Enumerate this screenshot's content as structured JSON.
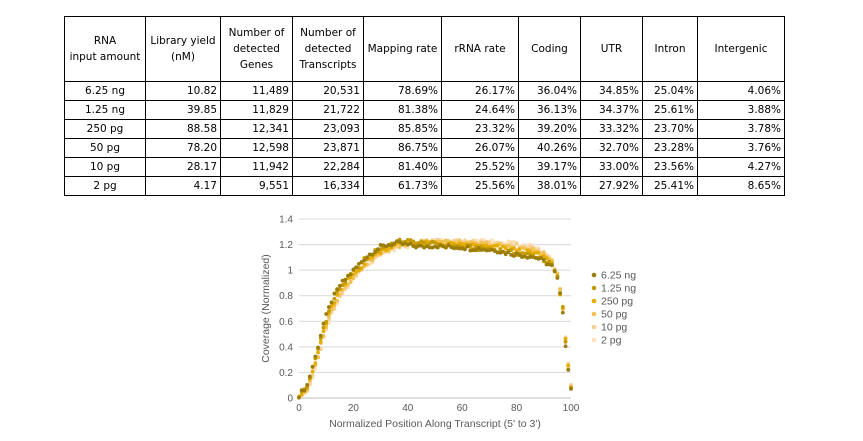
{
  "table": {
    "headers": [
      "RNA\ninput amount",
      "Library yield\n(nM)",
      "Number of\ndetected\nGenes",
      "Number of\ndetected\nTranscripts",
      "Mapping rate",
      "rRNA rate",
      "Coding",
      "UTR",
      "Intron",
      "Intergenic"
    ],
    "rows": [
      [
        "6.25 ng",
        "10.82",
        "11,489",
        "20,531",
        "78.69%",
        "26.17%",
        "36.04%",
        "34.85%",
        "25.04%",
        "4.06%"
      ],
      [
        "1.25 ng",
        "39.85",
        "11,829",
        "21,722",
        "81.38%",
        "24.64%",
        "36.13%",
        "34.37%",
        "25.61%",
        "3.88%"
      ],
      [
        "250 pg",
        "88.58",
        "12,341",
        "23,093",
        "85.85%",
        "23.32%",
        "39.20%",
        "33.32%",
        "23.70%",
        "3.78%"
      ],
      [
        "50 pg",
        "78.20",
        "12,598",
        "23,871",
        "86.75%",
        "26.07%",
        "40.26%",
        "32.70%",
        "23.28%",
        "3.76%"
      ],
      [
        "10 pg",
        "28.17",
        "11,942",
        "22,284",
        "81.40%",
        "25.52%",
        "39.17%",
        "33.00%",
        "23.56%",
        "4.27%"
      ],
      [
        "2 pg",
        "4.17",
        "9,551",
        "16,334",
        "61.73%",
        "25.56%",
        "38.01%",
        "27.92%",
        "25.41%",
        "8.65%"
      ]
    ]
  },
  "chart_data": {
    "type": "scatter",
    "title": "",
    "xlabel": "Normalized Position Along Transcript (5' to 3')",
    "ylabel": "Coverage (Normalized)",
    "xlim": [
      0,
      100
    ],
    "ylim": [
      0,
      1.4
    ],
    "xticks": [
      0,
      20,
      40,
      60,
      80,
      100
    ],
    "yticks": [
      0,
      0.2,
      0.4,
      0.6,
      0.8,
      1.0,
      1.2,
      1.4
    ],
    "xtick_labels": [
      "0",
      "20",
      "40",
      "60",
      "80",
      "100"
    ],
    "ytick_labels": [
      "0",
      "0.2",
      "0.4",
      "0.6",
      "0.8",
      "1",
      "1.2",
      "1.4"
    ],
    "legend_position": "right",
    "series": [
      {
        "name": "6.25 ng",
        "color": "#9a7d0a",
        "profile": [
          [
            0,
            0.02
          ],
          [
            3,
            0.1
          ],
          [
            6,
            0.32
          ],
          [
            9,
            0.58
          ],
          [
            12,
            0.76
          ],
          [
            15,
            0.88
          ],
          [
            18,
            0.95
          ],
          [
            21,
            1.02
          ],
          [
            24,
            1.09
          ],
          [
            27,
            1.14
          ],
          [
            30,
            1.18
          ],
          [
            33,
            1.2
          ],
          [
            36,
            1.21
          ],
          [
            39,
            1.2
          ],
          [
            42,
            1.19
          ],
          [
            45,
            1.18
          ],
          [
            48,
            1.19
          ],
          [
            51,
            1.19
          ],
          [
            54,
            1.18
          ],
          [
            57,
            1.18
          ],
          [
            60,
            1.18
          ],
          [
            63,
            1.17
          ],
          [
            66,
            1.17
          ],
          [
            69,
            1.16
          ],
          [
            72,
            1.16
          ],
          [
            75,
            1.14
          ],
          [
            78,
            1.13
          ],
          [
            81,
            1.12
          ],
          [
            84,
            1.11
          ],
          [
            87,
            1.1
          ],
          [
            90,
            1.07
          ],
          [
            93,
            1.03
          ],
          [
            95,
            0.93
          ],
          [
            97,
            0.68
          ],
          [
            98,
            0.42
          ],
          [
            99,
            0.22
          ],
          [
            100,
            0.08
          ]
        ]
      },
      {
        "name": "1.25 ng",
        "color": "#c49a00",
        "profile": [
          [
            0,
            0.02
          ],
          [
            3,
            0.09
          ],
          [
            6,
            0.3
          ],
          [
            9,
            0.55
          ],
          [
            12,
            0.74
          ],
          [
            15,
            0.86
          ],
          [
            18,
            0.94
          ],
          [
            21,
            1.01
          ],
          [
            24,
            1.08
          ],
          [
            27,
            1.13
          ],
          [
            30,
            1.17
          ],
          [
            33,
            1.2
          ],
          [
            36,
            1.22
          ],
          [
            39,
            1.23
          ],
          [
            42,
            1.22
          ],
          [
            45,
            1.21
          ],
          [
            48,
            1.21
          ],
          [
            51,
            1.2
          ],
          [
            54,
            1.19
          ],
          [
            57,
            1.19
          ],
          [
            60,
            1.18
          ],
          [
            63,
            1.18
          ],
          [
            66,
            1.17
          ],
          [
            69,
            1.17
          ],
          [
            72,
            1.16
          ],
          [
            75,
            1.15
          ],
          [
            78,
            1.14
          ],
          [
            81,
            1.13
          ],
          [
            84,
            1.12
          ],
          [
            87,
            1.11
          ],
          [
            90,
            1.08
          ],
          [
            93,
            1.04
          ],
          [
            95,
            0.94
          ],
          [
            97,
            0.7
          ],
          [
            98,
            0.44
          ],
          [
            99,
            0.23
          ],
          [
            100,
            0.08
          ]
        ]
      },
      {
        "name": "250 pg",
        "color": "#e6ac00",
        "profile": [
          [
            0,
            0.02
          ],
          [
            3,
            0.08
          ],
          [
            6,
            0.27
          ],
          [
            9,
            0.52
          ],
          [
            12,
            0.71
          ],
          [
            15,
            0.84
          ],
          [
            18,
            0.92
          ],
          [
            21,
            0.99
          ],
          [
            24,
            1.05
          ],
          [
            27,
            1.11
          ],
          [
            30,
            1.15
          ],
          [
            33,
            1.18
          ],
          [
            36,
            1.2
          ],
          [
            39,
            1.21
          ],
          [
            42,
            1.21
          ],
          [
            45,
            1.21
          ],
          [
            48,
            1.21
          ],
          [
            51,
            1.21
          ],
          [
            54,
            1.2
          ],
          [
            57,
            1.2
          ],
          [
            60,
            1.19
          ],
          [
            63,
            1.19
          ],
          [
            66,
            1.19
          ],
          [
            69,
            1.18
          ],
          [
            72,
            1.18
          ],
          [
            75,
            1.17
          ],
          [
            78,
            1.16
          ],
          [
            81,
            1.15
          ],
          [
            84,
            1.14
          ],
          [
            87,
            1.13
          ],
          [
            90,
            1.1
          ],
          [
            93,
            1.05
          ],
          [
            95,
            0.95
          ],
          [
            97,
            0.7
          ],
          [
            98,
            0.45
          ],
          [
            99,
            0.24
          ],
          [
            100,
            0.09
          ]
        ]
      },
      {
        "name": "50 pg",
        "color": "#f2c14e",
        "profile": [
          [
            0,
            0.02
          ],
          [
            3,
            0.07
          ],
          [
            6,
            0.25
          ],
          [
            9,
            0.5
          ],
          [
            12,
            0.69
          ],
          [
            15,
            0.82
          ],
          [
            18,
            0.9
          ],
          [
            21,
            0.97
          ],
          [
            24,
            1.04
          ],
          [
            27,
            1.09
          ],
          [
            30,
            1.14
          ],
          [
            33,
            1.17
          ],
          [
            36,
            1.19
          ],
          [
            39,
            1.2
          ],
          [
            42,
            1.21
          ],
          [
            45,
            1.22
          ],
          [
            48,
            1.22
          ],
          [
            51,
            1.22
          ],
          [
            54,
            1.22
          ],
          [
            57,
            1.21
          ],
          [
            60,
            1.21
          ],
          [
            63,
            1.2
          ],
          [
            66,
            1.2
          ],
          [
            69,
            1.2
          ],
          [
            72,
            1.19
          ],
          [
            75,
            1.19
          ],
          [
            78,
            1.18
          ],
          [
            81,
            1.17
          ],
          [
            84,
            1.16
          ],
          [
            87,
            1.15
          ],
          [
            90,
            1.12
          ],
          [
            93,
            1.07
          ],
          [
            95,
            0.96
          ],
          [
            97,
            0.71
          ],
          [
            98,
            0.46
          ],
          [
            99,
            0.25
          ],
          [
            100,
            0.09
          ]
        ]
      },
      {
        "name": "10 pg",
        "color": "#f6cf90",
        "profile": [
          [
            0,
            0.02
          ],
          [
            3,
            0.07
          ],
          [
            6,
            0.24
          ],
          [
            9,
            0.48
          ],
          [
            12,
            0.67
          ],
          [
            15,
            0.8
          ],
          [
            18,
            0.89
          ],
          [
            21,
            0.96
          ],
          [
            24,
            1.03
          ],
          [
            27,
            1.08
          ],
          [
            30,
            1.13
          ],
          [
            33,
            1.16
          ],
          [
            36,
            1.18
          ],
          [
            39,
            1.2
          ],
          [
            42,
            1.21
          ],
          [
            45,
            1.22
          ],
          [
            48,
            1.23
          ],
          [
            51,
            1.23
          ],
          [
            54,
            1.23
          ],
          [
            57,
            1.22
          ],
          [
            60,
            1.22
          ],
          [
            63,
            1.22
          ],
          [
            66,
            1.21
          ],
          [
            69,
            1.21
          ],
          [
            72,
            1.21
          ],
          [
            75,
            1.2
          ],
          [
            78,
            1.2
          ],
          [
            81,
            1.19
          ],
          [
            84,
            1.18
          ],
          [
            87,
            1.16
          ],
          [
            90,
            1.13
          ],
          [
            93,
            1.07
          ],
          [
            95,
            0.96
          ],
          [
            97,
            0.71
          ],
          [
            98,
            0.46
          ],
          [
            99,
            0.25
          ],
          [
            100,
            0.09
          ]
        ]
      },
      {
        "name": "2 pg",
        "color": "#fbe0b8",
        "profile": [
          [
            0,
            0.02
          ],
          [
            3,
            0.06
          ],
          [
            6,
            0.22
          ],
          [
            9,
            0.46
          ],
          [
            12,
            0.65
          ],
          [
            15,
            0.79
          ],
          [
            18,
            0.88
          ],
          [
            21,
            0.95
          ],
          [
            24,
            1.02
          ],
          [
            27,
            1.07
          ],
          [
            30,
            1.12
          ],
          [
            33,
            1.15
          ],
          [
            36,
            1.17
          ],
          [
            39,
            1.19
          ],
          [
            42,
            1.2
          ],
          [
            45,
            1.21
          ],
          [
            48,
            1.22
          ],
          [
            51,
            1.23
          ],
          [
            54,
            1.23
          ],
          [
            57,
            1.23
          ],
          [
            60,
            1.23
          ],
          [
            63,
            1.22
          ],
          [
            66,
            1.22
          ],
          [
            69,
            1.22
          ],
          [
            72,
            1.22
          ],
          [
            75,
            1.21
          ],
          [
            78,
            1.21
          ],
          [
            81,
            1.2
          ],
          [
            84,
            1.19
          ],
          [
            87,
            1.17
          ],
          [
            90,
            1.14
          ],
          [
            93,
            1.08
          ],
          [
            95,
            0.97
          ],
          [
            97,
            0.72
          ],
          [
            98,
            0.47
          ],
          [
            99,
            0.26
          ],
          [
            100,
            0.1
          ]
        ]
      }
    ]
  }
}
